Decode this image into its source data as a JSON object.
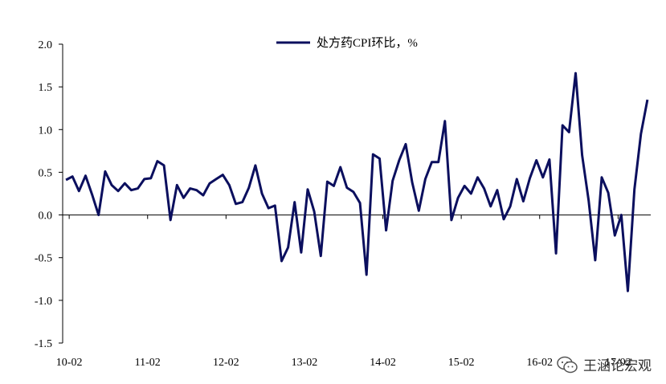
{
  "chart_data": {
    "type": "line",
    "legend": "处方药CPI环比，%",
    "legend_position": "top-center",
    "ylim": [
      -1.5,
      2.0
    ],
    "yticks": [
      "2.0",
      "1.5",
      "1.0",
      "0.5",
      "0.0",
      "-0.5",
      "-1.0",
      "-1.5"
    ],
    "ytick_values": [
      2.0,
      1.5,
      1.0,
      0.5,
      0.0,
      -0.5,
      -1.0,
      -1.5
    ],
    "xticks": [
      "10-02",
      "11-02",
      "12-02",
      "13-02",
      "14-02",
      "15-02",
      "16-02",
      "17-02"
    ],
    "grid": false,
    "series_color": "#0b0f5e",
    "x": [
      "10-01",
      "10-02",
      "10-03",
      "10-04",
      "10-05",
      "10-06",
      "10-07",
      "10-08",
      "10-09",
      "10-10",
      "10-11",
      "10-12",
      "11-01",
      "11-02",
      "11-03",
      "11-04",
      "11-05",
      "11-06",
      "11-07",
      "11-08",
      "11-09",
      "11-10",
      "11-11",
      "11-12",
      "12-01",
      "12-02",
      "12-03",
      "12-04",
      "12-05",
      "12-06",
      "12-07",
      "12-08",
      "12-09",
      "12-10",
      "12-11",
      "12-12",
      "13-01",
      "13-02",
      "13-03",
      "13-04",
      "13-05",
      "13-06",
      "13-07",
      "13-08",
      "13-09",
      "13-10",
      "13-11",
      "13-12",
      "14-01",
      "14-02",
      "14-03",
      "14-04",
      "14-05",
      "14-06",
      "14-07",
      "14-08",
      "14-09",
      "14-10",
      "14-11",
      "14-12",
      "15-01",
      "15-02",
      "15-03",
      "15-04",
      "15-05",
      "15-06",
      "15-07",
      "15-08",
      "15-09",
      "15-10",
      "15-11",
      "15-12",
      "16-01",
      "16-02",
      "16-03",
      "16-04",
      "16-05",
      "16-06",
      "16-07",
      "16-08",
      "16-09",
      "16-10",
      "16-11",
      "16-12",
      "17-01",
      "17-02",
      "17-03",
      "17-04",
      "17-05",
      "17-06"
    ],
    "series": [
      {
        "values": [
          0.41,
          0.45,
          0.28,
          0.46,
          0.24,
          0.0,
          0.51,
          0.35,
          0.28,
          0.37,
          0.29,
          0.31,
          0.42,
          0.43,
          0.63,
          0.58,
          -0.06,
          0.35,
          0.2,
          0.31,
          0.29,
          0.23,
          0.37,
          0.42,
          0.47,
          0.35,
          0.13,
          0.15,
          0.32,
          0.58,
          0.25,
          0.08,
          0.11,
          -0.54,
          -0.38,
          0.15,
          -0.44,
          0.3,
          0.04,
          -0.48,
          0.39,
          0.34,
          0.56,
          0.32,
          0.27,
          0.14,
          -0.7,
          0.71,
          0.66,
          -0.18,
          0.4,
          0.64,
          0.83,
          0.38,
          0.05,
          0.42,
          0.62,
          0.62,
          1.1,
          -0.06,
          0.2,
          0.34,
          0.25,
          0.44,
          0.31,
          0.1,
          0.29,
          -0.05,
          0.1,
          0.42,
          0.16,
          0.43,
          0.64,
          0.44,
          0.65,
          -0.45,
          1.05,
          0.97,
          1.66,
          0.7,
          0.17,
          -0.53,
          0.44,
          0.26,
          -0.24,
          0.0,
          -0.89,
          0.3,
          0.95,
          1.35
        ]
      }
    ]
  },
  "watermark": {
    "text": "王涵论宏观",
    "icon": "wechat-icon"
  }
}
